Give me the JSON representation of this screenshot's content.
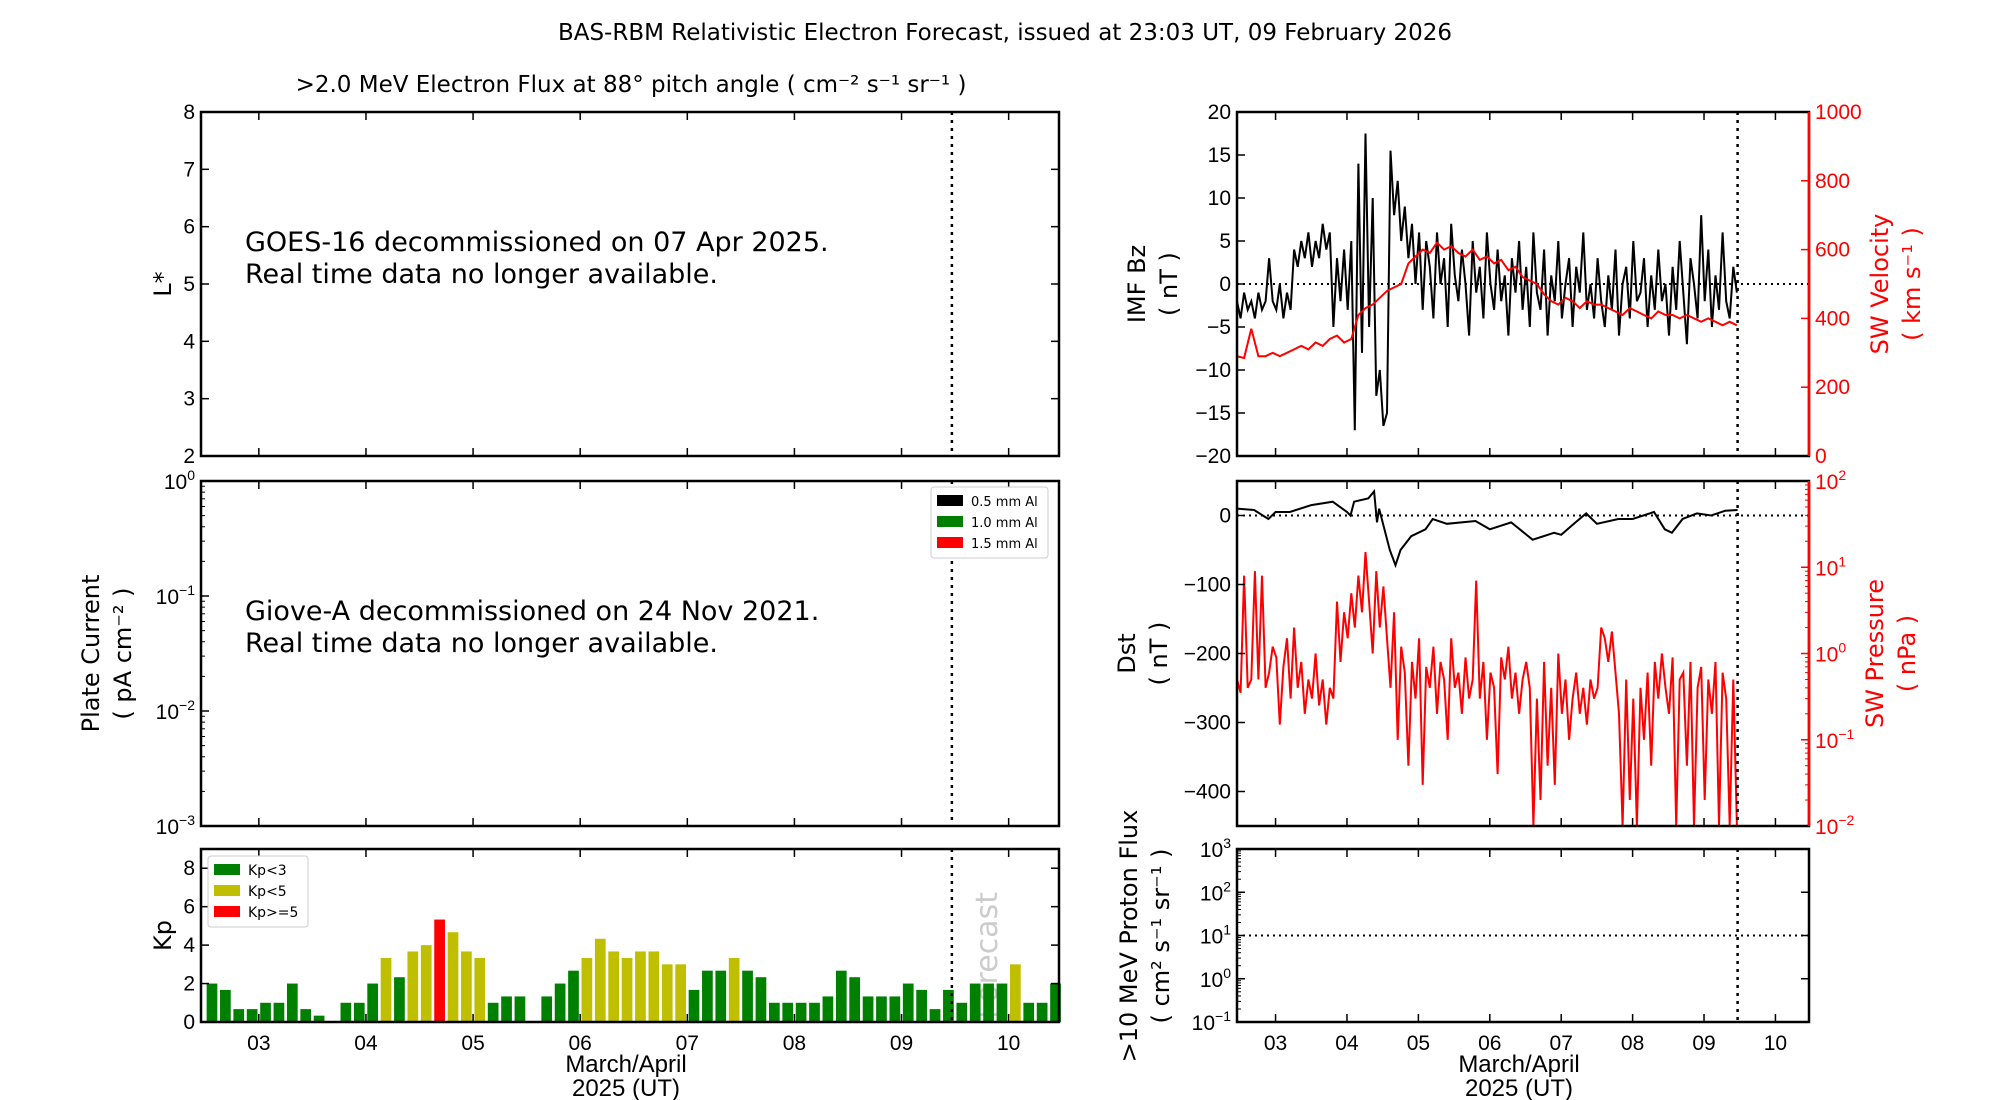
{
  "title": "BAS-RBM Relativistic Electron Forecast, issued at 23:03 UT, 09 February 2026",
  "x_axis": {
    "label_line1": "March/April",
    "label_line2": "2025 (UT)",
    "ticks": [
      3,
      4,
      5,
      6,
      7,
      8,
      9,
      10
    ],
    "tick_labels": [
      "03",
      "04",
      "05",
      "06",
      "07",
      "08",
      "09",
      "10"
    ],
    "xlim": [
      2.46,
      10.47
    ],
    "forecast_line": 9.47
  },
  "chart_data": [
    {
      "id": "electron_flux",
      "type": "heatmap",
      "title": ">2.0 MeV Electron Flux at 88° pitch angle ( cm⁻² s⁻¹ sr⁻¹ )",
      "ylabel": "L*",
      "ylim": [
        2,
        8
      ],
      "yticks": [
        2,
        3,
        4,
        5,
        6,
        7,
        8
      ],
      "message": [
        "GOES-16 decommissioned on 07 Apr 2025.",
        "Real time data no longer available."
      ]
    },
    {
      "id": "plate_current",
      "type": "line",
      "ylabel": [
        "Plate Current",
        "( pA cm⁻² )"
      ],
      "yscale": "log",
      "ylim": [
        0.001,
        1
      ],
      "yticks_exp": [
        -3,
        -2,
        -1,
        0
      ],
      "legend": [
        {
          "label": "0.5 mm Al",
          "color": "#000000"
        },
        {
          "label": "1.0 mm Al",
          "color": "#008000"
        },
        {
          "label": "1.5 mm Al",
          "color": "#ff0000"
        }
      ],
      "legend_position": "top-right",
      "message": [
        "Giove-A decommissioned on 24 Nov 2021.",
        "Real time data no longer available."
      ]
    },
    {
      "id": "kp",
      "type": "bar",
      "ylabel": "Kp",
      "ylim": [
        0,
        9
      ],
      "yticks": [
        0,
        2,
        4,
        6,
        8
      ],
      "x_start": 2.5625,
      "x_step": 0.125,
      "values": [
        2.0,
        1.67,
        0.67,
        0.67,
        1.0,
        1.0,
        2.0,
        0.67,
        0.33,
        0,
        1.0,
        1.0,
        2.0,
        3.33,
        2.33,
        3.67,
        4.0,
        5.33,
        4.67,
        3.67,
        3.33,
        1.0,
        1.33,
        1.33,
        0,
        1.33,
        2.0,
        2.67,
        3.33,
        4.33,
        3.67,
        3.33,
        3.67,
        3.67,
        3.0,
        3.0,
        1.67,
        2.67,
        2.67,
        3.33,
        2.67,
        2.33,
        1.0,
        1.0,
        1.0,
        1.0,
        1.33,
        2.67,
        2.33,
        1.33,
        1.33,
        1.33,
        2.0,
        1.67,
        0.67,
        1.67,
        1.0,
        2.0,
        2.0,
        2.0,
        3.0,
        1.0,
        1.0,
        2.0
      ],
      "legend": [
        {
          "label": "Kp<3",
          "color": "#008000"
        },
        {
          "label": "Kp<5",
          "color": "#bfbf00"
        },
        {
          "label": "Kp>=5",
          "color": "#ff0000"
        }
      ],
      "legend_position": "top-left",
      "forecast_label": "Forecast"
    },
    {
      "id": "imf_sw_velocity",
      "type": "line",
      "ylabel": [
        "IMF Bz",
        "( nT )"
      ],
      "ylim": [
        -20,
        20
      ],
      "yticks": [
        -20,
        -15,
        -10,
        -5,
        0,
        5,
        10,
        15,
        20
      ],
      "ylabel_right": [
        "SW Velocity",
        "( km s⁻¹ )"
      ],
      "ylim_right": [
        0,
        1000
      ],
      "yticks_right": [
        0,
        200,
        400,
        600,
        800,
        1000
      ],
      "reference_line": 0,
      "series": [
        {
          "axis": "left",
          "color": "#000000",
          "x_start": 2.46,
          "x_step": 0.05,
          "values": [
            -2,
            -4,
            -1,
            -3,
            -2,
            -4,
            -1,
            -3,
            -2,
            3,
            -2,
            -3,
            0,
            -4,
            -1,
            -3,
            4,
            2,
            5,
            3,
            6,
            2,
            5,
            3,
            7,
            4,
            6,
            -5,
            3,
            -2,
            4,
            -3,
            5,
            -17,
            14,
            -8,
            17.5,
            -5,
            10,
            -13,
            -10,
            -16.5,
            -15,
            15.5,
            8,
            12,
            5,
            9,
            3,
            7,
            0,
            6,
            -3,
            5,
            2,
            -4,
            6,
            0,
            3,
            -5,
            7,
            1,
            -2,
            4,
            0,
            -6,
            5,
            -1,
            2,
            -4,
            6,
            0,
            -3,
            4,
            -2,
            1,
            -6,
            3,
            -1,
            5,
            -3,
            2,
            -5,
            6,
            -1,
            -3,
            4,
            -6,
            1,
            -2,
            5,
            -4,
            0,
            3,
            -5,
            2,
            -1,
            6,
            -3,
            0,
            -4,
            3,
            -2,
            -5,
            1,
            -3,
            4,
            -6,
            0,
            2,
            -4,
            5,
            -2,
            -1,
            3,
            -5,
            1,
            -3,
            4,
            -2,
            0,
            -6,
            2,
            -3,
            5,
            -1,
            -7,
            3,
            0,
            -4,
            8,
            -2,
            4,
            -5,
            1,
            -3,
            6,
            -2,
            -4,
            2,
            -1
          ]
        },
        {
          "axis": "right",
          "color": "#ff0000",
          "x_start": 2.46,
          "x_step": 0.1,
          "values": [
            290,
            285,
            370,
            290,
            290,
            300,
            290,
            300,
            310,
            320,
            310,
            330,
            320,
            340,
            350,
            330,
            340,
            410,
            430,
            440,
            460,
            480,
            490,
            500,
            560,
            580,
            600,
            590,
            620,
            600,
            610,
            590,
            580,
            600,
            570,
            580,
            560,
            570,
            540,
            550,
            520,
            510,
            500,
            470,
            450,
            440,
            460,
            450,
            430,
            450,
            440,
            440,
            430,
            420,
            410,
            430,
            420,
            410,
            400,
            420,
            410,
            410,
            400,
            410,
            400,
            390,
            400,
            390,
            380,
            390,
            380
          ]
        }
      ]
    },
    {
      "id": "dst_sw_pressure",
      "type": "line",
      "ylabel": [
        "Dst",
        "( nT )"
      ],
      "ylim": [
        -450,
        50
      ],
      "yticks": [
        -400,
        -300,
        -200,
        -100,
        0
      ],
      "ylabel_right": [
        "SW Pressure",
        "( nPa )"
      ],
      "yscale_right": "log",
      "ylim_right": [
        0.01,
        100
      ],
      "yticks_right_exp": [
        -2,
        -1,
        0,
        1,
        2
      ],
      "reference_line": 0,
      "series": [
        {
          "axis": "left",
          "color": "#000000",
          "x": [
            2.46,
            2.7,
            2.9,
            3.0,
            3.2,
            3.5,
            3.8,
            4.0,
            4.05,
            4.1,
            4.3,
            4.38,
            4.42,
            4.45,
            4.6,
            4.68,
            4.75,
            4.9,
            5.1,
            5.2,
            5.4,
            5.8,
            6.0,
            6.3,
            6.6,
            6.9,
            7.0,
            7.2,
            7.35,
            7.5,
            7.8,
            8.0,
            8.3,
            8.45,
            8.55,
            8.7,
            8.9,
            9.1,
            9.3,
            9.47
          ],
          "values": [
            10,
            8,
            -5,
            5,
            5,
            15,
            20,
            5,
            0,
            20,
            25,
            35,
            -10,
            10,
            -50,
            -72,
            -50,
            -30,
            -20,
            -5,
            -12,
            -8,
            -20,
            -10,
            -35,
            -25,
            -28,
            -10,
            3,
            -12,
            -5,
            -5,
            5,
            -20,
            -25,
            -5,
            3,
            0,
            7,
            8
          ]
        },
        {
          "axis": "right",
          "color": "#ff0000",
          "x_start": 2.46,
          "x_step": 0.05,
          "values": [
            0.5,
            0.35,
            8,
            0.4,
            0.5,
            9,
            0.5,
            8,
            0.4,
            0.6,
            1.2,
            0.9,
            0.15,
            0.7,
            1.5,
            0.3,
            2,
            0.4,
            0.8,
            0.2,
            0.5,
            0.3,
            1.0,
            0.25,
            0.5,
            0.15,
            0.4,
            0.3,
            4,
            0.8,
            3,
            1.5,
            5,
            2,
            8,
            3,
            15,
            4,
            1,
            9,
            2,
            6,
            1.5,
            0.4,
            3,
            0.1,
            1.2,
            0.6,
            0.05,
            0.8,
            0.3,
            1.5,
            0.03,
            0.7,
            0.4,
            1.2,
            0.2,
            0.8,
            0.5,
            0.1,
            1.5,
            0.4,
            0.6,
            0.2,
            0.9,
            0.3,
            0.5,
            7,
            0.3,
            0.8,
            0.1,
            0.6,
            0.4,
            0.04,
            0.9,
            0.5,
            1.2,
            0.3,
            0.6,
            0.2,
            0.5,
            0.8,
            0.4,
            0.01,
            0.3,
            0.02,
            0.8,
            0.05,
            0.4,
            0.03,
            1,
            0.2,
            0.5,
            0.1,
            0.3,
            0.6,
            0.2,
            0.4,
            0.15,
            0.5,
            0.3,
            0.4,
            2,
            1.5,
            0.8,
            1.8,
            0.6,
            0.2,
            0.01,
            0.5,
            0.02,
            0.3,
            0.01,
            0.4,
            0.1,
            0.6,
            0.05,
            0.8,
            0.3,
            1,
            0.4,
            0.2,
            0.9,
            0.01,
            0.5,
            0.6,
            0.05,
            0.8,
            0.01,
            0.4,
            0.7,
            0.02,
            0.5,
            0.2,
            0.8,
            0.01,
            0.6,
            0.3,
            0.01,
            0.5,
            0.01
          ]
        }
      ]
    },
    {
      "id": "proton_flux",
      "type": "line",
      "ylabel": [
        ">10 MeV Proton Flux",
        "( cm² s⁻¹ sr⁻¹ )"
      ],
      "yscale": "log",
      "ylim": [
        0.1,
        1000
      ],
      "yticks_exp": [
        -1,
        0,
        1,
        2,
        3
      ],
      "reference_line": 10
    }
  ]
}
